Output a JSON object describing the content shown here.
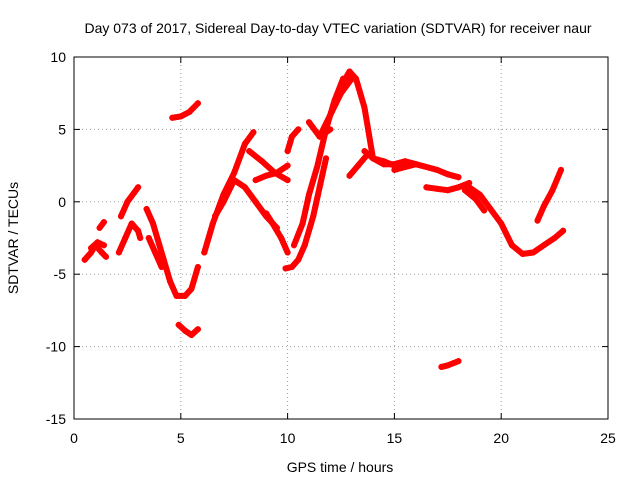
{
  "chart_data": {
    "type": "scatter",
    "title": "Day 073 of 2017, Sidereal Day-to-day VTEC variation (SDTVAR) for receiver naur",
    "xlabel": "GPS time / hours",
    "ylabel": "SDTVAR / TECUs",
    "xlim": [
      0,
      25
    ],
    "ylim": [
      -15,
      10
    ],
    "xticks": [
      0,
      5,
      10,
      15,
      20,
      25
    ],
    "xtick_labels": [
      "0",
      "5",
      "10",
      "15",
      "20",
      "25"
    ],
    "yticks": [
      -15,
      -10,
      -5,
      0,
      5,
      10
    ],
    "ytick_labels": [
      "-15",
      "-10",
      "-5",
      "0",
      "5",
      "10"
    ],
    "grid": true,
    "legend": "none",
    "marker": "plus",
    "color": "#ff0000",
    "series": [
      {
        "name": "s1",
        "x": [
          0.5,
          0.8,
          1.0,
          1.3,
          1.5
        ],
        "y": [
          -4.0,
          -3.5,
          -3.0,
          -3.5,
          -3.8
        ]
      },
      {
        "name": "s2",
        "x": [
          0.8,
          1.1,
          1.4
        ],
        "y": [
          -3.2,
          -2.8,
          -3.0
        ]
      },
      {
        "name": "s3",
        "x": [
          1.2,
          1.4
        ],
        "y": [
          -1.8,
          -1.4
        ]
      },
      {
        "name": "s4",
        "x": [
          2.1,
          2.4,
          2.7,
          3.0,
          3.1
        ],
        "y": [
          -3.5,
          -2.5,
          -1.5,
          -2.0,
          -2.5
        ]
      },
      {
        "name": "s5",
        "x": [
          2.2,
          2.5,
          2.8,
          3.0
        ],
        "y": [
          -1.0,
          0.0,
          0.6,
          1.0
        ]
      },
      {
        "name": "s6",
        "x": [
          3.4,
          3.7,
          4.0,
          4.2,
          4.5,
          4.8,
          5.2,
          5.5,
          5.8
        ],
        "y": [
          -0.5,
          -1.5,
          -3.0,
          -4.0,
          -5.5,
          -6.5,
          -6.5,
          -6.0,
          -4.5
        ]
      },
      {
        "name": "s7",
        "x": [
          3.5,
          3.8,
          4.1
        ],
        "y": [
          -2.5,
          -3.5,
          -4.5
        ]
      },
      {
        "name": "s8",
        "x": [
          4.6,
          5.0,
          5.4,
          5.8
        ],
        "y": [
          5.8,
          5.9,
          6.2,
          6.8
        ]
      },
      {
        "name": "s9",
        "x": [
          4.9,
          5.2,
          5.5,
          5.8
        ],
        "y": [
          -8.5,
          -8.9,
          -9.2,
          -8.8
        ]
      },
      {
        "name": "s10",
        "x": [
          6.1,
          6.5,
          7.0,
          7.5,
          8.0,
          8.4
        ],
        "y": [
          -3.5,
          -1.5,
          0.5,
          2.0,
          4.0,
          4.8
        ]
      },
      {
        "name": "s11",
        "x": [
          6.6,
          7.0,
          7.5,
          8.0,
          8.5,
          9.0,
          9.5
        ],
        "y": [
          -1.0,
          0.0,
          1.5,
          1.0,
          0.0,
          -1.0,
          -1.8
        ]
      },
      {
        "name": "s12",
        "x": [
          8.2,
          8.8,
          9.4,
          10.0
        ],
        "y": [
          3.5,
          2.8,
          2.0,
          1.5
        ]
      },
      {
        "name": "s13",
        "x": [
          8.5,
          9.0,
          9.5,
          10.0
        ],
        "y": [
          1.5,
          1.8,
          2.0,
          2.5
        ]
      },
      {
        "name": "s14",
        "x": [
          9.0,
          9.3,
          9.7,
          10.0
        ],
        "y": [
          -0.8,
          -1.5,
          -2.5,
          -3.5
        ]
      },
      {
        "name": "s15",
        "x": [
          9.9,
          10.2,
          10.5,
          10.8,
          11.2,
          11.5,
          11.8
        ],
        "y": [
          -4.6,
          -4.5,
          -4.0,
          -3.0,
          -1.0,
          1.0,
          3.0
        ]
      },
      {
        "name": "s16",
        "x": [
          10.0,
          10.2,
          10.5
        ],
        "y": [
          3.5,
          4.5,
          5.0
        ]
      },
      {
        "name": "s17",
        "x": [
          10.3,
          10.7,
          11.0,
          11.4,
          11.8,
          12.2,
          12.6
        ],
        "y": [
          -3.0,
          -1.5,
          0.5,
          2.5,
          5.0,
          7.0,
          8.5
        ]
      },
      {
        "name": "s18",
        "x": [
          11.5,
          12.0,
          12.5,
          13.0
        ],
        "y": [
          4.5,
          6.0,
          7.5,
          8.5
        ]
      },
      {
        "name": "s19",
        "x": [
          12.5,
          12.9,
          13.2,
          13.6,
          14.0
        ],
        "y": [
          8.0,
          9.0,
          8.5,
          6.5,
          3.0
        ]
      },
      {
        "name": "s20",
        "x": [
          12.9,
          13.3,
          13.7
        ],
        "y": [
          1.8,
          2.5,
          3.2
        ]
      },
      {
        "name": "s21",
        "x": [
          11.0,
          11.5,
          12.0
        ],
        "y": [
          5.5,
          4.5,
          5.0
        ]
      },
      {
        "name": "s22",
        "x": [
          13.6,
          14.0,
          14.5,
          15.0,
          15.5
        ],
        "y": [
          3.5,
          3.0,
          2.8,
          2.5,
          2.5
        ]
      },
      {
        "name": "s23",
        "x": [
          14.0,
          14.5,
          15.0,
          15.5,
          16.0,
          16.5,
          17.0,
          17.5,
          18.0
        ],
        "y": [
          3.0,
          2.6,
          2.6,
          2.8,
          2.6,
          2.4,
          2.2,
          1.9,
          1.7
        ]
      },
      {
        "name": "s24",
        "x": [
          15.0,
          15.5,
          16.0
        ],
        "y": [
          2.2,
          2.4,
          2.6
        ]
      },
      {
        "name": "s25",
        "x": [
          16.5,
          17.0,
          17.5,
          18.0,
          18.5
        ],
        "y": [
          1.0,
          0.9,
          0.8,
          1.0,
          1.3
        ]
      },
      {
        "name": "s26",
        "x": [
          18.5,
          19.0,
          19.5,
          20.0,
          20.5,
          21.0,
          21.5,
          22.0,
          22.5,
          22.9
        ],
        "y": [
          1.0,
          0.5,
          -0.5,
          -1.5,
          -3.0,
          -3.6,
          -3.5,
          -3.0,
          -2.5,
          -2.0
        ]
      },
      {
        "name": "s27",
        "x": [
          18.3,
          18.8,
          19.2
        ],
        "y": [
          0.8,
          0.2,
          -0.6
        ]
      },
      {
        "name": "s28",
        "x": [
          17.2,
          17.5,
          18.0
        ],
        "y": [
          -11.4,
          -11.3,
          -11.0
        ]
      },
      {
        "name": "s29",
        "x": [
          21.7,
          22.0,
          22.4,
          22.8
        ],
        "y": [
          -1.3,
          -0.3,
          0.8,
          2.2
        ]
      }
    ]
  }
}
